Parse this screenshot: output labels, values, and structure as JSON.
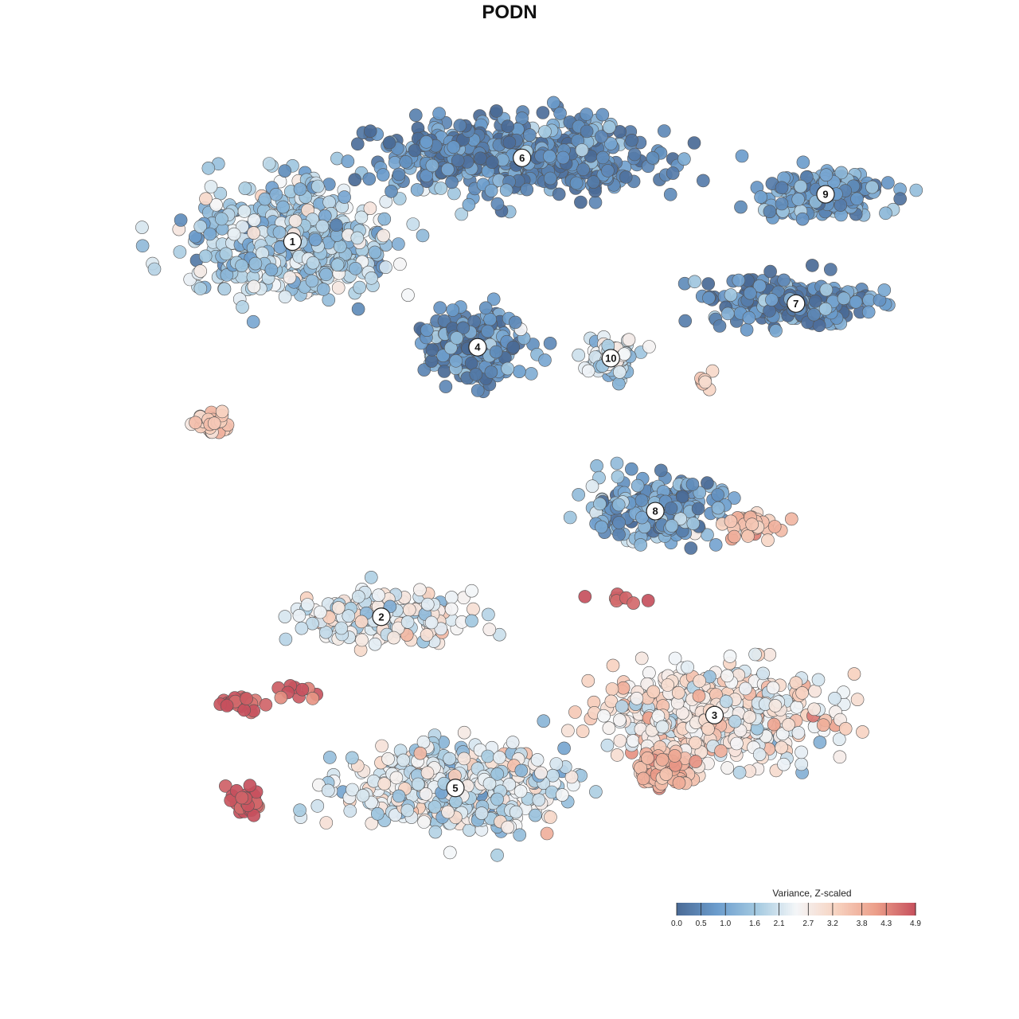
{
  "chart_data": {
    "type": "scatter",
    "title": "PODN",
    "xlabel": "",
    "ylabel": "",
    "grid": false,
    "legend": {
      "title": "Variance, Z-scaled",
      "placement": "bottom-right",
      "ticks": [
        "0.0",
        "0.5",
        "1.0",
        "1.6",
        "2.1",
        "2.7",
        "3.2",
        "3.8",
        "4.3",
        "4.9"
      ],
      "range": [
        0.0,
        4.9
      ],
      "colors": [
        "#4a6a96",
        "#6b9ccc",
        "#a3c9e0",
        "#f4f6f8",
        "#f7d3c1",
        "#ec9f8a",
        "#c6505d"
      ]
    },
    "clusters": [
      {
        "label": "1",
        "x": 0.18,
        "y": 0.73,
        "spread": [
          0.12,
          0.14
        ],
        "level": 1.7,
        "n": 520
      },
      {
        "label": "2",
        "x": 0.3,
        "y": -0.3,
        "spread": [
          0.1,
          0.06
        ],
        "level": 2.5,
        "n": 220
      },
      {
        "label": "3",
        "x": 0.75,
        "y": -0.57,
        "spread": [
          0.14,
          0.11
        ],
        "level": 2.8,
        "n": 520
      },
      {
        "label": "4",
        "x": 0.43,
        "y": 0.44,
        "spread": [
          0.06,
          0.08
        ],
        "level": 0.6,
        "n": 260
      },
      {
        "label": "5",
        "x": 0.4,
        "y": -0.77,
        "spread": [
          0.13,
          0.1
        ],
        "level": 2.2,
        "n": 520
      },
      {
        "label": "6",
        "x": 0.49,
        "y": 0.96,
        "spread": [
          0.16,
          0.09
        ],
        "level": 0.55,
        "n": 540
      },
      {
        "label": "7",
        "x": 0.86,
        "y": 0.56,
        "spread": [
          0.1,
          0.06
        ],
        "level": 0.45,
        "n": 260
      },
      {
        "label": "8",
        "x": 0.67,
        "y": -0.01,
        "spread": [
          0.08,
          0.08
        ],
        "level": 1.0,
        "n": 220
      },
      {
        "label": "9",
        "x": 0.9,
        "y": 0.86,
        "spread": [
          0.07,
          0.06
        ],
        "level": 0.8,
        "n": 180
      },
      {
        "label": "10",
        "x": 0.61,
        "y": 0.41,
        "spread": [
          0.03,
          0.05
        ],
        "level": 2.0,
        "n": 90
      }
    ],
    "hotspots": [
      {
        "x": 0.07,
        "y": 0.23,
        "spread": [
          0.025,
          0.03
        ],
        "level": 3.4,
        "n": 28
      },
      {
        "x": 0.11,
        "y": -0.54,
        "spread": [
          0.03,
          0.02
        ],
        "level": 4.7,
        "n": 22
      },
      {
        "x": 0.19,
        "y": -0.51,
        "spread": [
          0.03,
          0.02
        ],
        "level": 4.6,
        "n": 10
      },
      {
        "x": 0.12,
        "y": -0.81,
        "spread": [
          0.02,
          0.035
        ],
        "level": 4.9,
        "n": 30
      },
      {
        "x": 0.8,
        "y": -0.05,
        "spread": [
          0.035,
          0.03
        ],
        "level": 3.6,
        "n": 45
      },
      {
        "x": 0.68,
        "y": -0.72,
        "spread": [
          0.035,
          0.05
        ],
        "level": 3.8,
        "n": 90
      },
      {
        "x": 0.64,
        "y": -0.25,
        "spread": [
          0.05,
          0.01
        ],
        "level": 4.8,
        "n": 8
      },
      {
        "x": 0.74,
        "y": 0.34,
        "spread": [
          0.015,
          0.03
        ],
        "level": 3.3,
        "n": 8
      }
    ]
  }
}
